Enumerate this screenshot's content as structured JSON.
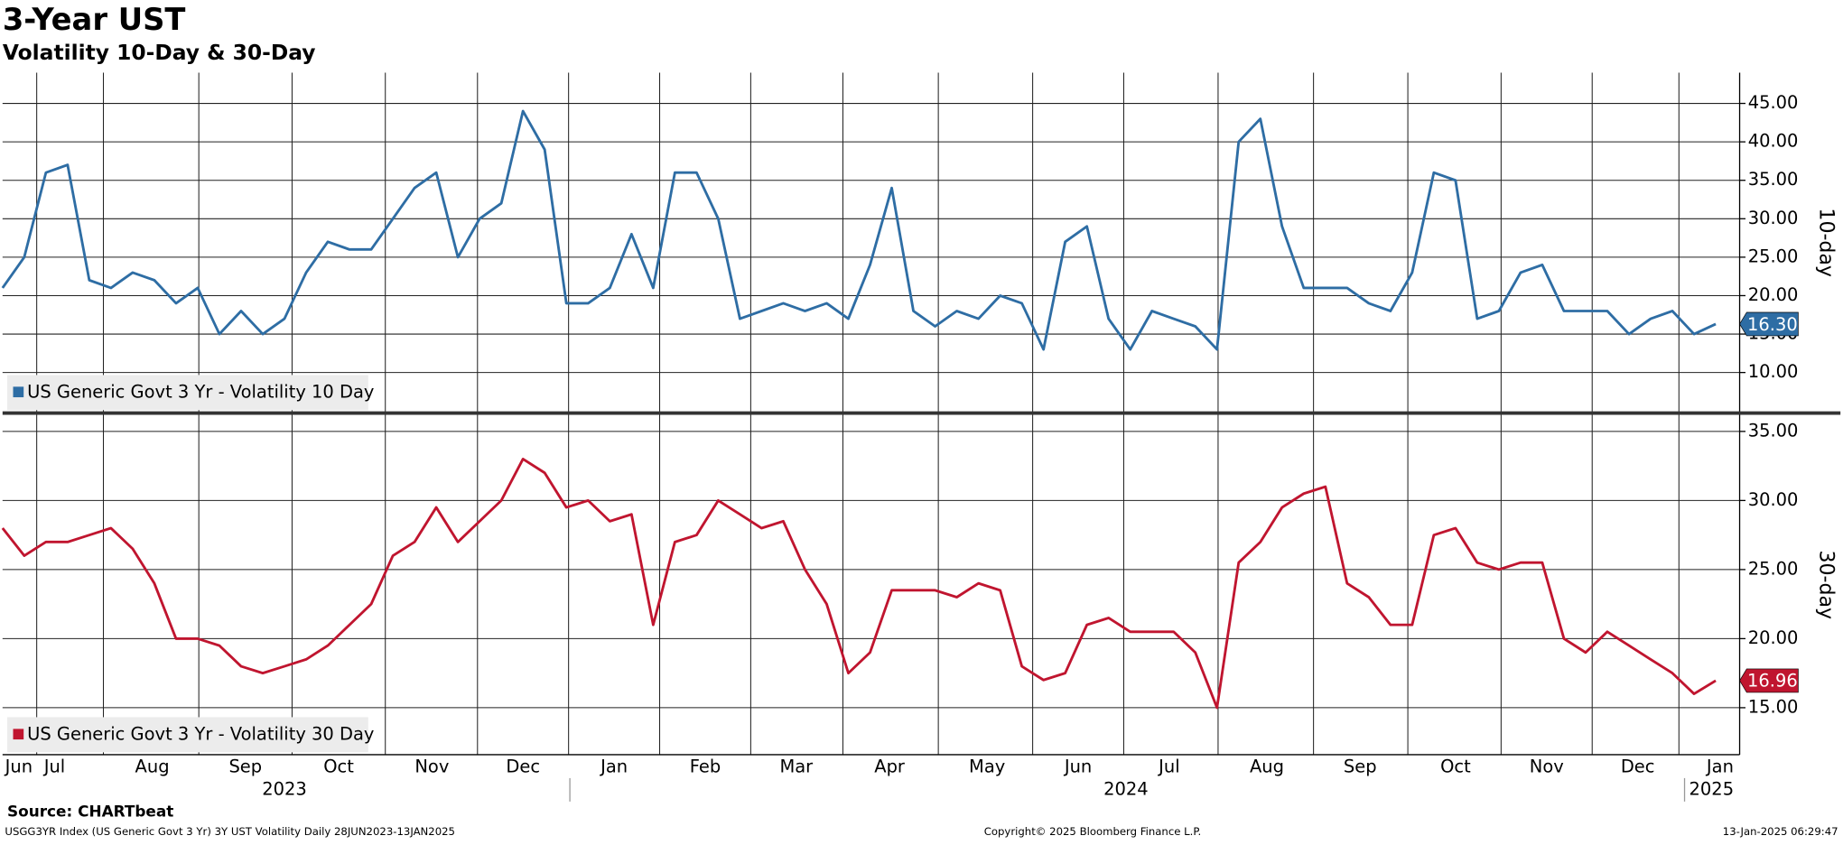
{
  "header": {
    "title": "3-Year UST",
    "subtitle": "Volatility 10-Day & 30-Day"
  },
  "x_axis": {
    "xlim": [
      0,
      80.1
    ],
    "xticks": [
      {
        "value": 0.75,
        "label": "Jun"
      },
      {
        "value": 2.4,
        "label": "Jul"
      },
      {
        "value": 6.9,
        "label": "Aug"
      },
      {
        "value": 11.2,
        "label": "Sep"
      },
      {
        "value": 15.5,
        "label": "Oct"
      },
      {
        "value": 19.8,
        "label": "Nov"
      },
      {
        "value": 24.0,
        "label": "Dec"
      },
      {
        "value": 28.2,
        "label": "Jan"
      },
      {
        "value": 32.4,
        "label": "Feb"
      },
      {
        "value": 36.6,
        "label": "Mar"
      },
      {
        "value": 40.9,
        "label": "Apr"
      },
      {
        "value": 45.4,
        "label": "May"
      },
      {
        "value": 49.6,
        "label": "Jun"
      },
      {
        "value": 53.8,
        "label": "Jul"
      },
      {
        "value": 58.3,
        "label": "Aug"
      },
      {
        "value": 62.6,
        "label": "Sep"
      },
      {
        "value": 67.0,
        "label": "Oct"
      },
      {
        "value": 71.2,
        "label": "Nov"
      },
      {
        "value": 75.4,
        "label": "Dec"
      },
      {
        "value": 79.2,
        "label": "Jan"
      }
    ],
    "year_labels": [
      {
        "value": 13.0,
        "label": "2023"
      },
      {
        "value": 51.8,
        "label": "2024"
      },
      {
        "value": 78.8,
        "label": "2025"
      }
    ]
  },
  "chart_data": [
    {
      "type": "line",
      "y_axis_label": "10-day",
      "ylim": [
        4.8,
        49
      ],
      "grid": true,
      "yticks": [
        {
          "value": 10,
          "label": "10.00"
        },
        {
          "value": 15,
          "label": "15.00"
        },
        {
          "value": 20,
          "label": "20.00"
        },
        {
          "value": 25,
          "label": "25.00"
        },
        {
          "value": 30,
          "label": "30.00"
        },
        {
          "value": 35,
          "label": "35.00"
        },
        {
          "value": 40,
          "label": "40.00"
        },
        {
          "value": 45,
          "label": "45.00"
        }
      ],
      "series": [
        {
          "name": "US Generic Govt 3 Yr  - Volatility 10 Day",
          "color": "#2e6da4",
          "last_value_label": "16.30",
          "values": [
            21,
            25,
            36,
            37,
            22,
            21,
            23,
            22,
            19,
            21,
            15,
            18,
            15,
            17,
            23,
            27,
            26,
            26,
            30,
            34,
            36,
            25,
            30,
            32,
            44,
            39,
            19,
            19,
            21,
            28,
            21,
            36,
            36,
            30,
            17,
            18,
            19,
            18,
            19,
            17,
            24,
            34,
            18,
            16,
            18,
            17,
            20,
            19,
            13,
            27,
            29,
            17,
            13,
            18,
            17,
            16,
            13,
            40,
            43,
            29,
            21,
            21,
            21,
            19,
            18,
            23,
            36,
            35,
            17,
            18,
            23,
            24,
            18,
            18,
            18,
            15,
            17,
            18,
            15,
            16.3
          ]
        }
      ]
    },
    {
      "type": "line",
      "y_axis_label": "30-day",
      "ylim": [
        11.6,
        36.2
      ],
      "grid": true,
      "yticks": [
        {
          "value": 15,
          "label": "15.00"
        },
        {
          "value": 20,
          "label": "20.00"
        },
        {
          "value": 25,
          "label": "25.00"
        },
        {
          "value": 30,
          "label": "30.00"
        },
        {
          "value": 35,
          "label": "35.00"
        }
      ],
      "series": [
        {
          "name": "US Generic Govt 3 Yr  - Volatility 30 Day",
          "color": "#c0152f",
          "last_value_label": "16.96",
          "values": [
            28,
            26,
            27,
            27,
            27.5,
            28,
            26.5,
            24,
            20,
            20,
            19.5,
            18,
            17.5,
            18,
            18.5,
            19.5,
            21,
            22.5,
            26,
            27,
            29.5,
            27,
            28.5,
            30,
            33,
            32,
            29.5,
            30,
            28.5,
            29,
            21,
            27,
            27.5,
            30,
            29,
            28,
            28.5,
            25,
            22.5,
            17.5,
            19,
            23.5,
            23.5,
            23.5,
            23,
            24,
            23.5,
            18,
            17,
            17.5,
            21,
            21.5,
            20.5,
            20.5,
            20.5,
            19,
            15,
            25.5,
            27,
            29.5,
            30.5,
            31,
            24,
            23,
            21,
            21,
            27.5,
            28,
            25.5,
            25,
            25.5,
            25.5,
            20,
            19,
            20.5,
            19.5,
            18.5,
            17.5,
            16,
            16.96
          ]
        }
      ]
    }
  ],
  "footer": {
    "source": "Source: CHARTbeat",
    "description": "USGG3YR Index (US Generic Govt 3 Yr) 3Y UST Volatility  Daily 28JUN2023-13JAN2025",
    "copyright": "Copyright© 2025 Bloomberg Finance L.P.",
    "timestamp": "13-Jan-2025 06:29:47"
  }
}
